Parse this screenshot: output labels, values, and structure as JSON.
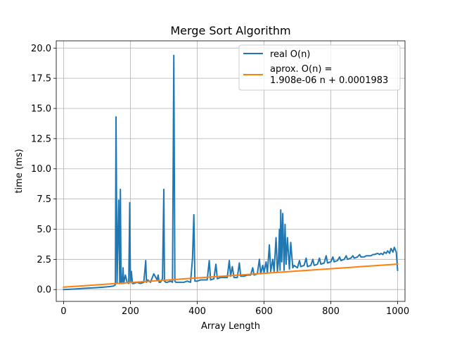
{
  "chart_data": {
    "type": "line",
    "title": "Merge Sort Algorithm",
    "xlabel": "Array Length",
    "ylabel": "time (ms)",
    "xlim": [
      -22,
      1022
    ],
    "ylim": [
      -0.98,
      20.6
    ],
    "xticks": [
      0,
      200,
      400,
      600,
      800,
      1000
    ],
    "xtick_labels": [
      "0",
      "200",
      "400",
      "600",
      "800",
      "1000"
    ],
    "yticks": [
      0.0,
      2.5,
      5.0,
      7.5,
      10.0,
      12.5,
      15.0,
      17.5,
      20.0
    ],
    "ytick_labels": [
      "0.0",
      "2.5",
      "5.0",
      "7.5",
      "10.0",
      "12.5",
      "15.0",
      "17.5",
      "20.0"
    ],
    "grid": true,
    "legend_position": "top-right",
    "series": [
      {
        "name": "real O(n)",
        "color": "#1f77b4",
        "x": [
          0,
          20,
          40,
          60,
          80,
          100,
          120,
          140,
          150,
          155,
          157,
          160,
          165,
          168,
          170,
          172,
          175,
          178,
          180,
          185,
          190,
          195,
          198,
          200,
          203,
          206,
          210,
          220,
          230,
          240,
          246,
          248,
          252,
          260,
          270,
          280,
          283,
          286,
          290,
          296,
          300,
          302,
          306,
          310,
          320,
          326,
          330,
          333,
          336,
          340,
          350,
          360,
          370,
          380,
          386,
          390,
          393,
          396,
          400,
          410,
          420,
          430,
          436,
          440,
          450,
          456,
          460,
          470,
          480,
          490,
          496,
          500,
          505,
          510,
          520,
          526,
          530,
          540,
          550,
          560,
          566,
          570,
          580,
          586,
          590,
          596,
          600,
          606,
          610,
          616,
          620,
          626,
          630,
          636,
          640,
          643,
          646,
          648,
          650,
          653,
          656,
          660,
          663,
          666,
          670,
          676,
          680,
          686,
          690,
          700,
          706,
          710,
          720,
          726,
          730,
          740,
          746,
          750,
          760,
          766,
          770,
          780,
          786,
          790,
          800,
          806,
          810,
          820,
          826,
          830,
          840,
          846,
          850,
          860,
          866,
          870,
          880,
          886,
          890,
          900,
          906,
          910,
          920,
          926,
          930,
          940,
          946,
          950,
          956,
          960,
          966,
          970,
          976,
          980,
          986,
          990,
          996,
          1000
        ],
        "values": [
          0.0,
          0.03,
          0.06,
          0.1,
          0.13,
          0.16,
          0.2,
          0.25,
          0.3,
          0.4,
          14.3,
          0.5,
          7.4,
          0.5,
          8.3,
          0.6,
          0.5,
          1.8,
          0.5,
          1.2,
          0.6,
          0.5,
          7.2,
          0.6,
          1.5,
          0.5,
          0.5,
          0.6,
          0.5,
          0.6,
          2.4,
          0.6,
          0.8,
          0.6,
          1.3,
          0.8,
          1.2,
          0.6,
          0.6,
          0.9,
          8.3,
          0.7,
          0.6,
          0.6,
          0.7,
          0.6,
          19.4,
          0.7,
          0.6,
          0.6,
          0.6,
          0.6,
          0.7,
          0.6,
          2.6,
          6.2,
          0.7,
          0.7,
          0.7,
          0.8,
          0.8,
          0.8,
          2.4,
          0.8,
          0.9,
          2.1,
          0.9,
          1.0,
          1.0,
          1.0,
          2.4,
          1.1,
          1.9,
          1.0,
          1.0,
          2.2,
          1.1,
          1.1,
          1.2,
          1.2,
          1.8,
          1.2,
          1.3,
          2.5,
          1.3,
          2.0,
          1.4,
          2.3,
          1.4,
          3.7,
          1.5,
          2.5,
          1.5,
          4.3,
          1.5,
          2.2,
          5.0,
          1.6,
          6.6,
          2.3,
          6.3,
          1.6,
          5.4,
          2.1,
          4.3,
          1.7,
          3.9,
          1.8,
          2.0,
          1.8,
          2.4,
          1.9,
          2.0,
          2.6,
          1.9,
          2.0,
          2.5,
          2.0,
          2.1,
          2.6,
          2.1,
          2.2,
          2.8,
          2.2,
          2.3,
          2.7,
          2.3,
          2.4,
          2.7,
          2.4,
          2.5,
          2.8,
          2.5,
          2.6,
          2.8,
          2.6,
          2.7,
          2.9,
          2.7,
          2.7,
          2.8,
          2.8,
          2.8,
          2.9,
          2.9,
          3.0,
          2.9,
          3.0,
          2.9,
          3.1,
          3.0,
          3.2,
          3.0,
          3.4,
          3.1,
          3.5,
          3.1,
          1.6
        ]
      },
      {
        "name": "aprox. O(n) =\n1.908e-06 n + 0.0001983",
        "color": "#ff7f0e",
        "x": [
          0,
          1000
        ],
        "values": [
          0.1983,
          2.1063
        ]
      }
    ]
  }
}
